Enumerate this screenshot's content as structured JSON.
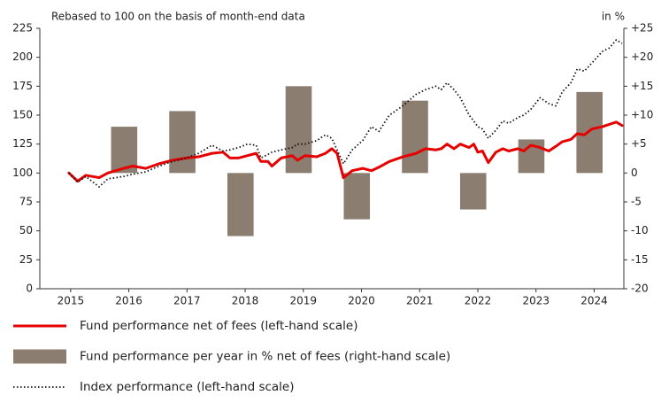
{
  "chart_data": {
    "type": "combo",
    "subtitle": "Rebased to 100 on the basis of month-end data",
    "y2_unit": "in %",
    "xlim": [
      2014.47,
      2024.51
    ],
    "xticks": [
      2015,
      2016,
      2017,
      2018,
      2019,
      2020,
      2021,
      2022,
      2023,
      2024
    ],
    "ylim": [
      0,
      225
    ],
    "yticks": [
      0,
      25,
      50,
      75,
      100,
      125,
      150,
      175,
      200,
      225
    ],
    "y2lim": [
      -20,
      25
    ],
    "y2ticks": [
      -20,
      -15,
      -10,
      -5,
      0,
      {
        "value": 5,
        "label": "+5"
      },
      {
        "value": 10,
        "label": "+10"
      },
      {
        "value": 15,
        "label": "+15"
      },
      {
        "value": 20,
        "label": "+20"
      },
      {
        "value": 25,
        "label": "+25"
      }
    ],
    "grid": false,
    "legend": "bottom",
    "x": [
      2014.97,
      2015.12,
      2015.26,
      2015.49,
      2015.64,
      2015.91,
      2016.07,
      2016.29,
      2016.52,
      2016.75,
      2016.99,
      2017.2,
      2017.43,
      2017.62,
      2017.74,
      2017.89,
      2018.04,
      2018.19,
      2018.27,
      2018.39,
      2018.46,
      2018.62,
      2018.81,
      2018.9,
      2019.03,
      2019.23,
      2019.38,
      2019.49,
      2019.58,
      2019.69,
      2019.84,
      2020.02,
      2020.17,
      2020.3,
      2020.48,
      2020.71,
      2020.94,
      2021.1,
      2021.28,
      2021.37,
      2021.47,
      2021.59,
      2021.7,
      2021.85,
      2021.93,
      2022.0,
      2022.08,
      2022.18,
      2022.31,
      2022.43,
      2022.53,
      2022.69,
      2022.79,
      2022.91,
      2023.07,
      2023.22,
      2023.34,
      2023.45,
      2023.6,
      2023.71,
      2023.83,
      2023.96,
      2024.14,
      2024.26,
      2024.38,
      2024.48
    ],
    "series": [
      {
        "name": "Fund performance net of fees (left-hand scale)",
        "type": "line",
        "line_style": "solid",
        "color": "#e60000",
        "values": [
          100,
          93,
          98,
          96,
          100,
          104,
          106,
          104,
          108,
          111,
          113,
          114,
          117,
          118,
          113,
          113,
          115,
          117,
          110,
          110,
          106,
          113,
          115,
          111,
          115,
          114,
          117,
          121,
          117,
          96,
          102,
          104,
          102,
          105,
          110,
          114,
          117,
          121,
          120,
          121,
          125,
          121,
          125,
          122,
          125,
          118,
          119,
          109,
          118,
          121,
          119,
          121,
          119,
          124,
          122,
          119,
          123,
          127,
          129,
          134,
          133,
          138,
          140,
          142,
          144,
          141
        ]
      },
      {
        "name": "Fund performance per year in % net of fees (right-hand scale)",
        "type": "bar",
        "axis": "y2",
        "color": "#8b7d6f",
        "x": [
          2015.92,
          2016.92,
          2017.92,
          2018.92,
          2019.92,
          2020.92,
          2021.92,
          2022.92,
          2023.92
        ],
        "values": [
          8,
          10.7,
          -10.9,
          15,
          -8,
          12.5,
          -6.3,
          5.8,
          14
        ]
      },
      {
        "name": "Index performance (left-hand scale)",
        "type": "line",
        "line_style": "dotted",
        "color": "#111111",
        "values": [
          100,
          92,
          97,
          88,
          95,
          97,
          99,
          101,
          106,
          110,
          113,
          117,
          124,
          119,
          120,
          122,
          125,
          124,
          113,
          116,
          118,
          120,
          122,
          125,
          125,
          128,
          133,
          130,
          120,
          108,
          120,
          128,
          140,
          136,
          150,
          158,
          168,
          172,
          175,
          172,
          178,
          172,
          165,
          150,
          145,
          140,
          138,
          130,
          137,
          145,
          143,
          148,
          150,
          155,
          165,
          160,
          158,
          170,
          178,
          190,
          188,
          195,
          205,
          208,
          215,
          212
        ]
      }
    ]
  }
}
